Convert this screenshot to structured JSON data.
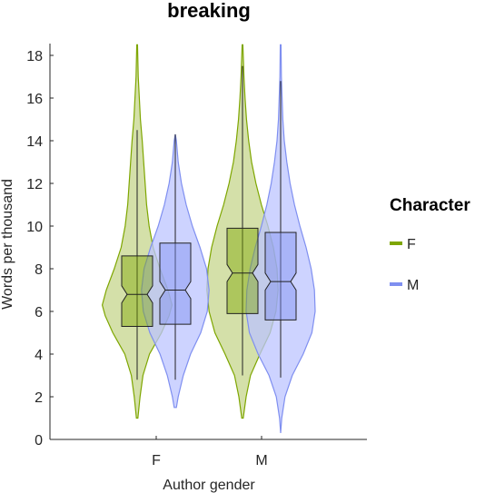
{
  "chart_data": {
    "type": "violin",
    "title": "breaking",
    "xlabel": "Author gender",
    "ylabel": "Words per thousand",
    "ylim": [
      0,
      18.5
    ],
    "yticks": [
      0,
      2,
      4,
      6,
      8,
      10,
      12,
      14,
      16,
      18
    ],
    "categories": [
      "F",
      "M"
    ],
    "legend": {
      "title": "Character",
      "position": "right",
      "entries": [
        "F",
        "M"
      ]
    },
    "series": [
      {
        "name": "F",
        "fill_color": "#c6d68c",
        "line_color": "#7ea600",
        "box_color": "#7ea600",
        "groups": [
          {
            "category": "F",
            "min": 2.8,
            "q1": 5.3,
            "median": 6.8,
            "q3": 8.6,
            "max": 14.5,
            "notch": [
              6.4,
              7.2
            ],
            "violin": {
              "bottom": 1.0,
              "top": 18.5,
              "profile": [
                [
                  1.0,
                  0.02
                ],
                [
                  2.0,
                  0.08
                ],
                [
                  3.0,
                  0.16
                ],
                [
                  4.0,
                  0.34
                ],
                [
                  5.0,
                  0.67
                ],
                [
                  5.8,
                  0.88
                ],
                [
                  6.3,
                  0.96
                ],
                [
                  7.0,
                  0.85
                ],
                [
                  8.0,
                  0.63
                ],
                [
                  9.0,
                  0.44
                ],
                [
                  10.0,
                  0.33
                ],
                [
                  11.0,
                  0.26
                ],
                [
                  12.0,
                  0.22
                ],
                [
                  13.0,
                  0.18
                ],
                [
                  14.0,
                  0.14
                ],
                [
                  15.0,
                  0.09
                ],
                [
                  16.0,
                  0.06
                ],
                [
                  17.0,
                  0.03
                ],
                [
                  18.5,
                  0.01
                ]
              ]
            }
          },
          {
            "category": "M",
            "min": 3.0,
            "q1": 5.9,
            "median": 7.8,
            "q3": 9.9,
            "max": 17.5,
            "notch": [
              7.4,
              8.2
            ],
            "violin": {
              "bottom": 1.0,
              "top": 18.5,
              "profile": [
                [
                  1.0,
                  0.02
                ],
                [
                  2.0,
                  0.1
                ],
                [
                  3.0,
                  0.22
                ],
                [
                  4.0,
                  0.48
                ],
                [
                  5.0,
                  0.76
                ],
                [
                  6.0,
                  0.92
                ],
                [
                  7.0,
                  0.98
                ],
                [
                  8.0,
                  0.95
                ],
                [
                  9.0,
                  0.85
                ],
                [
                  10.0,
                  0.7
                ],
                [
                  11.0,
                  0.52
                ],
                [
                  12.0,
                  0.37
                ],
                [
                  13.0,
                  0.25
                ],
                [
                  14.0,
                  0.17
                ],
                [
                  15.0,
                  0.11
                ],
                [
                  16.0,
                  0.07
                ],
                [
                  17.0,
                  0.04
                ],
                [
                  18.5,
                  0.01
                ]
              ]
            }
          }
        ]
      },
      {
        "name": "M",
        "fill_color": "#bcc4ff",
        "line_color": "#7f8ff0",
        "box_color": "#7f8ff0",
        "groups": [
          {
            "category": "F",
            "min": 2.8,
            "q1": 5.4,
            "median": 7.0,
            "q3": 9.2,
            "max": 14.3,
            "notch": [
              6.6,
              7.4
            ],
            "violin": {
              "bottom": 1.5,
              "top": 14.3,
              "profile": [
                [
                  1.5,
                  0.03
                ],
                [
                  2.0,
                  0.08
                ],
                [
                  3.0,
                  0.22
                ],
                [
                  4.0,
                  0.42
                ],
                [
                  5.0,
                  0.7
                ],
                [
                  6.0,
                  0.88
                ],
                [
                  7.0,
                  0.93
                ],
                [
                  8.0,
                  0.86
                ],
                [
                  9.0,
                  0.68
                ],
                [
                  10.0,
                  0.47
                ],
                [
                  11.0,
                  0.3
                ],
                [
                  12.0,
                  0.17
                ],
                [
                  13.0,
                  0.08
                ],
                [
                  14.0,
                  0.03
                ],
                [
                  14.3,
                  0.0
                ]
              ]
            }
          },
          {
            "category": "M",
            "min": 2.9,
            "q1": 5.6,
            "median": 7.4,
            "q3": 9.7,
            "max": 16.8,
            "notch": [
              7.0,
              7.8
            ],
            "violin": {
              "bottom": 0.3,
              "top": 18.5,
              "profile": [
                [
                  0.3,
                  0.0
                ],
                [
                  1.0,
                  0.03
                ],
                [
                  2.0,
                  0.12
                ],
                [
                  3.0,
                  0.32
                ],
                [
                  4.0,
                  0.62
                ],
                [
                  5.0,
                  0.86
                ],
                [
                  6.0,
                  0.95
                ],
                [
                  7.0,
                  0.93
                ],
                [
                  8.0,
                  0.84
                ],
                [
                  9.0,
                  0.7
                ],
                [
                  10.0,
                  0.53
                ],
                [
                  11.0,
                  0.38
                ],
                [
                  12.0,
                  0.26
                ],
                [
                  13.0,
                  0.17
                ],
                [
                  14.0,
                  0.1
                ],
                [
                  15.0,
                  0.06
                ],
                [
                  16.0,
                  0.04
                ],
                [
                  17.0,
                  0.02
                ],
                [
                  18.5,
                  0.01
                ]
              ]
            }
          }
        ]
      }
    ]
  }
}
